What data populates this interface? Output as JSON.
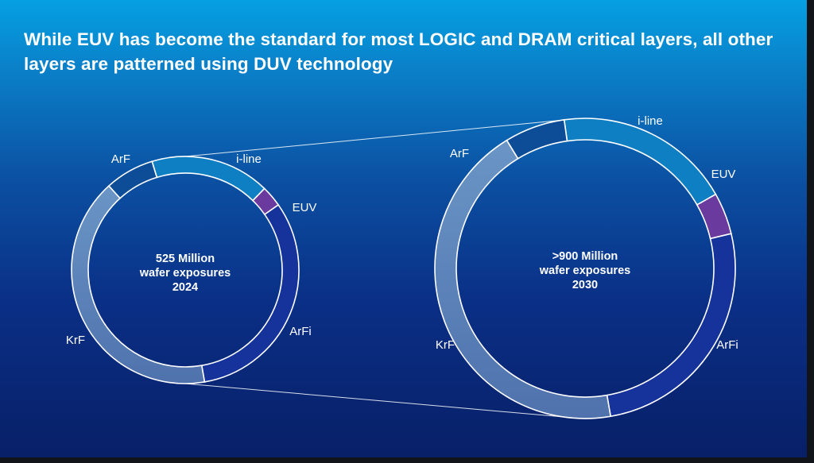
{
  "slide": {
    "title": "While EUV has become the standard for most LOGIC and DRAM critical layers, all other layers are patterned using DUV technology"
  },
  "colors": {
    "i-line": "#0f7fc4",
    "EUV": "#6a3a9e",
    "ArFi": "#16339c",
    "KrF": "#5e86b8",
    "ArF": "#0d4d98",
    "separator": "#ffffff"
  },
  "chart_data": [
    {
      "type": "pie",
      "style": "donut",
      "center_lines": [
        "525 Million",
        "wafer exposures",
        "2024"
      ],
      "segments": [
        {
          "label": "i-line",
          "value": 17
        },
        {
          "label": "EUV",
          "value": 3
        },
        {
          "label": "ArFi",
          "value": 32
        },
        {
          "label": "KrF",
          "value": 41
        },
        {
          "label": "ArF",
          "value": 7
        }
      ]
    },
    {
      "type": "pie",
      "style": "donut",
      "center_lines": [
        ">900 Million",
        "wafer exposures",
        "2030"
      ],
      "segments": [
        {
          "label": "i-line",
          "value": 19
        },
        {
          "label": "EUV",
          "value": 4.5
        },
        {
          "label": "ArFi",
          "value": 26
        },
        {
          "label": "KrF",
          "value": 44
        },
        {
          "label": "ArF",
          "value": 6.5
        }
      ]
    }
  ]
}
